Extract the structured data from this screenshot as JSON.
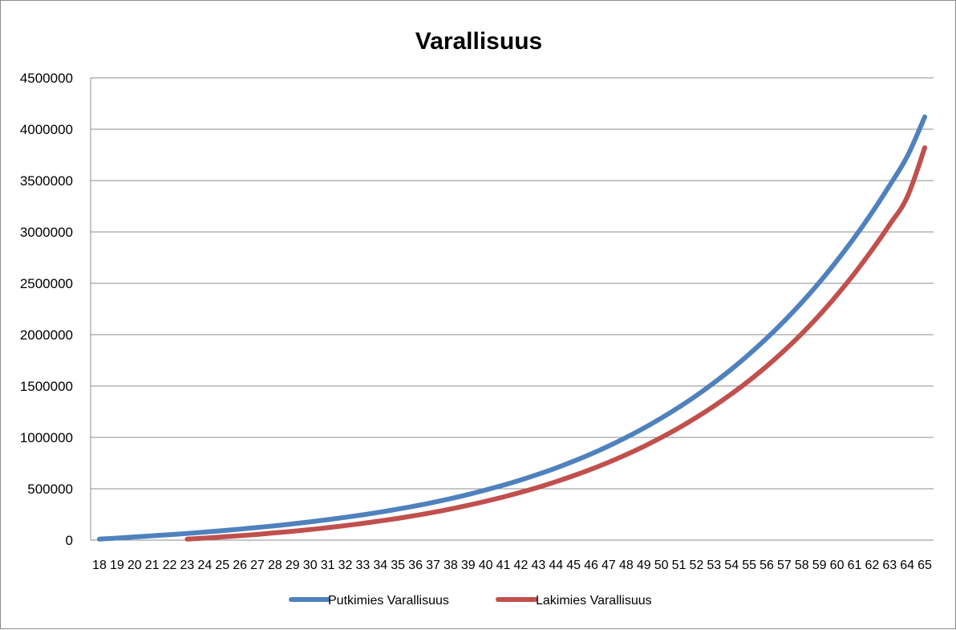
{
  "chart_data": {
    "type": "line",
    "title": "Varallisuus",
    "xlabel": "",
    "ylabel": "",
    "ylim": [
      0,
      4500000
    ],
    "yticks": [
      "0",
      "500000",
      "1000000",
      "1500000",
      "2000000",
      "2500000",
      "3000000",
      "3500000",
      "4000000",
      "4500000"
    ],
    "grid": true,
    "legend_position": "bottom",
    "categories": [
      "18",
      "19",
      "20",
      "21",
      "22",
      "23",
      "24",
      "25",
      "26",
      "27",
      "28",
      "29",
      "30",
      "31",
      "32",
      "33",
      "34",
      "35",
      "36",
      "37",
      "38",
      "39",
      "40",
      "41",
      "42",
      "43",
      "44",
      "45",
      "46",
      "47",
      "48",
      "49",
      "50",
      "51",
      "52",
      "53",
      "54",
      "55",
      "56",
      "57",
      "58",
      "59",
      "60",
      "61",
      "62",
      "63",
      "64",
      "65"
    ],
    "series": [
      {
        "name": "Putkimies Varallisuus",
        "color": "#4F81BD",
        "values": [
          10000,
          20000,
          31000,
          42000,
          53000,
          65000,
          78000,
          92000,
          107000,
          123000,
          140000,
          158000,
          178000,
          199000,
          222000,
          246000,
          273000,
          302000,
          333000,
          367000,
          404000,
          444000,
          488000,
          535000,
          586000,
          642000,
          702000,
          768000,
          839000,
          916000,
          1000000,
          1090000,
          1188000,
          1294000,
          1408000,
          1532000,
          1665000,
          1810000,
          1965000,
          2133000,
          2314000,
          2509000,
          2720000,
          2946000,
          3190000,
          3453000,
          3735000,
          4120000
        ]
      },
      {
        "name": "Lakimies Varallisuus",
        "color": "#C0504D",
        "values": [
          null,
          null,
          null,
          null,
          null,
          10000,
          20000,
          31000,
          43000,
          56000,
          71000,
          86000,
          103000,
          121000,
          141000,
          163000,
          187000,
          212000,
          240000,
          270000,
          303000,
          339000,
          378000,
          420000,
          466000,
          515000,
          569000,
          627000,
          690000,
          758000,
          832000,
          912000,
          999000,
          1093000,
          1195000,
          1305000,
          1424000,
          1553000,
          1693000,
          1845000,
          2010000,
          2190000,
          2385000,
          2596000,
          2825000,
          3072000,
          3340000,
          3820000
        ]
      }
    ]
  }
}
